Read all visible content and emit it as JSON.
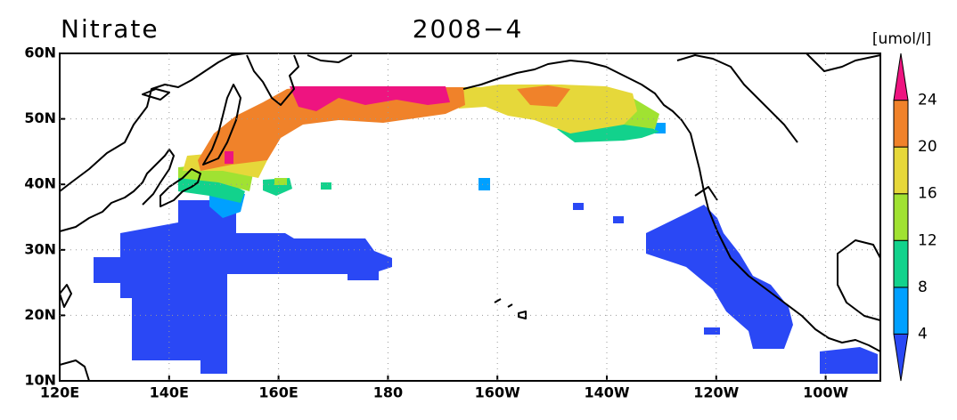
{
  "header": {
    "title": "Nitrate",
    "period": "2008−4"
  },
  "x_axis": {
    "labels": [
      "120E",
      "140E",
      "160E",
      "180",
      "160W",
      "140W",
      "120W",
      "100W"
    ]
  },
  "y_axis": {
    "labels": [
      "10N",
      "20N",
      "30N",
      "40N",
      "50N",
      "60N"
    ]
  },
  "colorbar": {
    "unit": "[umol/l]",
    "levels": [
      4,
      8,
      12,
      16,
      20,
      24
    ],
    "colors": [
      "#2a48f5",
      "#00a0ff",
      "#12d28c",
      "#a0e232",
      "#e6d83a",
      "#f0822a",
      "#ee1480"
    ]
  }
}
